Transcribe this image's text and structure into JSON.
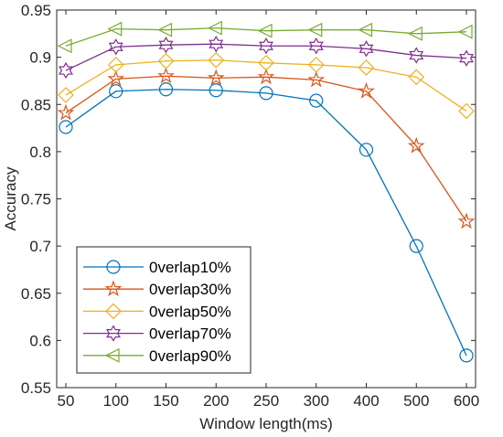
{
  "chart_data": {
    "type": "line",
    "title": "",
    "xlabel": "Window length(ms)",
    "ylabel": "Accuracy",
    "categories": [
      "50",
      "100",
      "150",
      "200",
      "250",
      "300",
      "400",
      "500",
      "600"
    ],
    "ylim": [
      0.55,
      0.95
    ],
    "yticks": [
      "0.55",
      "0.6",
      "0.65",
      "0.7",
      "0.75",
      "0.8",
      "0.85",
      "0.9",
      "0.95"
    ],
    "grid": false,
    "legend_position": "bottom-left",
    "series": [
      {
        "name": "0verlap10%",
        "marker": "circle",
        "color": "#0072BD",
        "values": [
          0.826,
          0.864,
          0.866,
          0.865,
          0.862,
          0.854,
          0.802,
          0.7,
          0.584
        ]
      },
      {
        "name": "0verlap30%",
        "marker": "star",
        "color": "#D95319",
        "values": [
          0.841,
          0.877,
          0.88,
          0.878,
          0.879,
          0.876,
          0.864,
          0.806,
          0.726
        ]
      },
      {
        "name": "0verlap50%",
        "marker": "diamond",
        "color": "#EDB120",
        "values": [
          0.86,
          0.892,
          0.896,
          0.897,
          0.894,
          0.892,
          0.889,
          0.879,
          0.843
        ]
      },
      {
        "name": "0verlap70%",
        "marker": "hexagram",
        "color": "#7E2F8E",
        "values": [
          0.886,
          0.911,
          0.913,
          0.914,
          0.912,
          0.912,
          0.909,
          0.902,
          0.899
        ]
      },
      {
        "name": "0verlap90%",
        "marker": "triangle-left",
        "color": "#77AC30",
        "values": [
          0.912,
          0.93,
          0.929,
          0.931,
          0.928,
          0.929,
          0.929,
          0.925,
          0.927
        ]
      }
    ]
  }
}
